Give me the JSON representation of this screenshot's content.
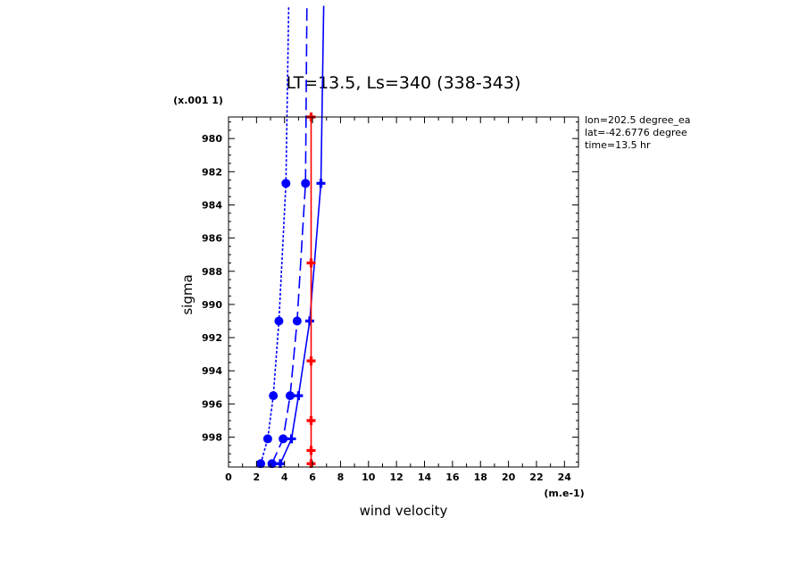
{
  "chart_data": {
    "type": "line",
    "title": "LT=13.5, Ls=340 (338-343)",
    "xlabel": "wind velocity",
    "ylabel": "sigma",
    "x_unit": "(m.e-1)",
    "y_unit": "(x.001 1)",
    "xlim": [
      0,
      25
    ],
    "ylim": [
      999.8,
      978.7
    ],
    "x_ticks": [
      0,
      2,
      4,
      6,
      8,
      10,
      12,
      14,
      16,
      18,
      20,
      22,
      24
    ],
    "y_ticks": [
      980,
      982,
      984,
      986,
      988,
      990,
      992,
      994,
      996,
      998
    ],
    "grid": false,
    "annotations": [
      "lon=202.5 degree_ea",
      "lat=-42.6776 degree",
      "time=13.5 hr"
    ],
    "series": [
      {
        "color": "#0000ff",
        "dash": "dotted",
        "marker": "circle",
        "x": [
          2.3,
          2.8,
          3.2,
          3.6,
          4.1,
          4.3
        ],
        "y": [
          999.6,
          998.1,
          995.5,
          991.0,
          982.7,
          972.0
        ]
      },
      {
        "color": "#0000ff",
        "dash": "dashed",
        "marker": "circle",
        "x": [
          3.1,
          3.9,
          4.4,
          4.9,
          5.5,
          5.6
        ],
        "y": [
          999.6,
          998.1,
          995.5,
          991.0,
          982.7,
          972.0
        ]
      },
      {
        "color": "#0000ff",
        "dash": "solid",
        "marker": "plus",
        "x": [
          3.7,
          4.5,
          5.0,
          5.8,
          6.6,
          6.8
        ],
        "y": [
          999.6,
          998.1,
          995.5,
          991.0,
          982.7,
          972.0
        ]
      },
      {
        "color": "#ff0000",
        "dash": "solid",
        "marker": "plus",
        "x": [
          5.9,
          5.9,
          5.9,
          5.9,
          5.9,
          5.9
        ],
        "y": [
          999.6,
          998.8,
          997.0,
          993.4,
          987.5,
          978.7
        ]
      }
    ]
  }
}
